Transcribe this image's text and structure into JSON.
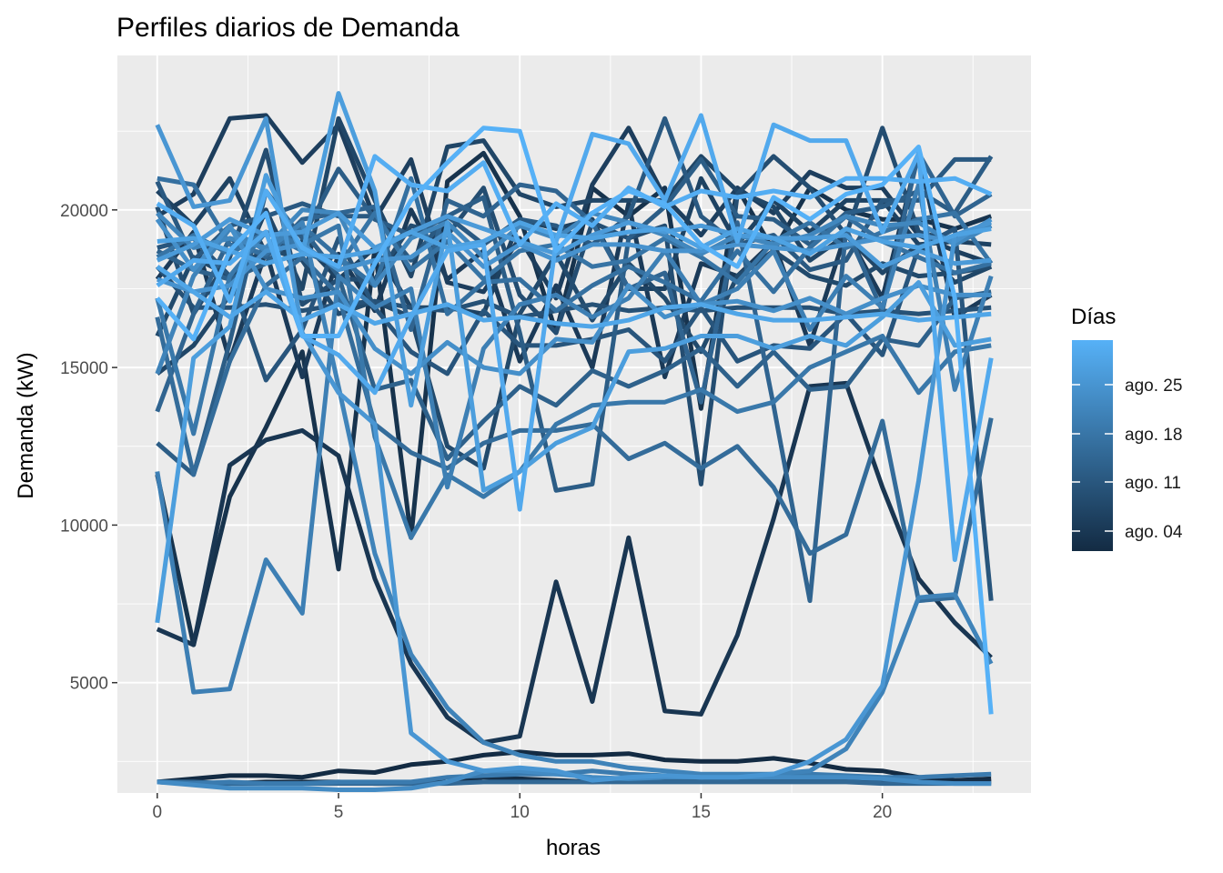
{
  "chart_data": {
    "type": "line",
    "title": "Perfiles diarios de Demanda",
    "xlabel": "horas",
    "ylabel": "Demanda (kW)",
    "xlim": [
      -1.1,
      24.1
    ],
    "ylim": [
      1500,
      24900
    ],
    "x_ticks": [
      0,
      5,
      10,
      15,
      20
    ],
    "y_ticks": [
      5000,
      10000,
      15000,
      20000
    ],
    "grid": true,
    "background": "#EBEBEB",
    "legend": {
      "title": "Días",
      "position": "right",
      "labels": [
        "ago. 25",
        "ago. 18",
        "ago. 11",
        "ago. 04"
      ],
      "color_low": "#132B43",
      "color_high": "#56B1F7"
    },
    "x": [
      0,
      1,
      2,
      3,
      4,
      5,
      6,
      7,
      8,
      9,
      10,
      11,
      12,
      13,
      14,
      15,
      16,
      17,
      18,
      19,
      20,
      21,
      22,
      23
    ],
    "series": [
      {
        "day": 1,
        "values": [
          1850,
          1950,
          2050,
          2050,
          2000,
          2200,
          2150,
          2400,
          2500,
          2700,
          2800,
          2700,
          2700,
          2750,
          2550,
          2500,
          2500,
          2600,
          2450,
          2250,
          2200,
          2000,
          1900,
          1950
        ]
      },
      {
        "day": 2,
        "values": [
          1850,
          1800,
          1800,
          1850,
          1850,
          1850,
          1800,
          1800,
          1850,
          2000,
          1950,
          1900,
          1850,
          1900,
          1950,
          1900,
          1900,
          1900,
          1950,
          1950,
          1850,
          1850,
          1850,
          1850
        ]
      },
      {
        "day": 3,
        "values": [
          11600,
          6200,
          10900,
          13100,
          15500,
          8600,
          18800,
          9600,
          20900,
          21800,
          19800,
          16100,
          20700,
          19800,
          20700,
          13700,
          20700,
          18700,
          20700,
          20000,
          19700,
          19700,
          19400,
          19800
        ]
      },
      {
        "day": 4,
        "values": [
          6700,
          6200,
          11900,
          12700,
          13000,
          12200,
          8300,
          5600,
          3900,
          3100,
          3300,
          8200,
          4400,
          9600,
          4100,
          4000,
          6500,
          10200,
          14400,
          14500,
          11200,
          8300,
          6900,
          5800
        ]
      },
      {
        "day": 5,
        "values": [
          17800,
          19300,
          15200,
          18700,
          14700,
          18600,
          16800,
          20000,
          17800,
          18700,
          15200,
          17600,
          15000,
          20200,
          14700,
          18300,
          17900,
          19000,
          15700,
          19300,
          17200,
          21800,
          16600,
          17300
        ]
      },
      {
        "day": 6,
        "values": [
          19800,
          20500,
          22900,
          23000,
          21500,
          22700,
          19700,
          21600,
          17700,
          17400,
          19100,
          17200,
          20800,
          22600,
          20400,
          19200,
          20700,
          19900,
          21200,
          20700,
          20700,
          19200,
          18700,
          18300
        ]
      },
      {
        "day": 7,
        "values": [
          20600,
          19500,
          21000,
          18600,
          19000,
          17800,
          18800,
          16900,
          16900,
          16700,
          19700,
          19400,
          19700,
          17500,
          17500,
          21000,
          18900,
          20300,
          19300,
          20300,
          20300,
          18900,
          19000,
          18900
        ]
      },
      {
        "day": 8,
        "values": [
          14800,
          15700,
          17300,
          20000,
          17500,
          22900,
          20300,
          17900,
          22000,
          22200,
          20500,
          20100,
          20300,
          20300,
          20300,
          21700,
          20600,
          20100,
          18400,
          19200,
          18000,
          18900,
          17700,
          18200
        ]
      },
      {
        "day": 9,
        "values": [
          16000,
          18500,
          17900,
          18800,
          18400,
          16700,
          17100,
          16600,
          12500,
          11800,
          16700,
          18600,
          16500,
          18300,
          17200,
          15500,
          17900,
          18700,
          17900,
          17600,
          18300,
          17900,
          18000,
          18200
        ]
      },
      {
        "day": 10,
        "values": [
          20100,
          16700,
          18500,
          21900,
          17000,
          17800,
          17800,
          19500,
          19200,
          20700,
          17300,
          16100,
          19600,
          19100,
          19500,
          11300,
          20500,
          21700,
          20700,
          19200,
          22600,
          19300,
          19000,
          19500
        ]
      },
      {
        "day": 11,
        "values": [
          18200,
          16900,
          16900,
          17000,
          16800,
          17000,
          17100,
          16900,
          16800,
          17100,
          16600,
          16800,
          17000,
          16800,
          16900,
          16800,
          16900,
          16900,
          16900,
          16700,
          16800,
          16700,
          16800,
          16900
        ]
      },
      {
        "day": 12,
        "values": [
          18800,
          19100,
          17900,
          14600,
          16200,
          19100,
          16900,
          15500,
          14800,
          16800,
          15700,
          15700,
          15900,
          16200,
          15200,
          16900,
          15200,
          15700,
          15600,
          16700,
          15400,
          18800,
          19400,
          7600
        ]
      },
      {
        "day": 13,
        "values": [
          20900,
          18400,
          19500,
          19800,
          20200,
          19800,
          19800,
          18400,
          19800,
          18900,
          19700,
          19500,
          18900,
          19800,
          22900,
          19800,
          18900,
          19200,
          18100,
          18400,
          20300,
          20300,
          21600,
          21600
        ]
      },
      {
        "day": 14,
        "values": [
          12600,
          11600,
          15800,
          20600,
          19100,
          21300,
          19700,
          19200,
          19800,
          20400,
          16100,
          11100,
          11300,
          19100,
          20100,
          21600,
          19800,
          19700,
          18900,
          19900,
          20100,
          20600,
          19900,
          21700
        ]
      },
      {
        "day": 15,
        "values": [
          18700,
          18100,
          17800,
          18300,
          19400,
          17900,
          14300,
          14600,
          12100,
          13300,
          14400,
          13800,
          14900,
          14400,
          14900,
          15600,
          14400,
          15500,
          14300,
          14400,
          15900,
          15700,
          17200,
          17400
        ]
      },
      {
        "day": 16,
        "values": [
          13600,
          16700,
          19100,
          18500,
          19700,
          19900,
          20100,
          16200,
          20300,
          19800,
          20800,
          20600,
          19600,
          17500,
          18000,
          13900,
          19600,
          13800,
          7600,
          19400,
          16800,
          21800,
          19800,
          20500
        ]
      },
      {
        "day": 17,
        "values": [
          1850,
          1850,
          1800,
          1800,
          1800,
          1800,
          1800,
          1800,
          1800,
          1850,
          1850,
          1850,
          1850,
          1850,
          1850,
          1850,
          1850,
          1850,
          1850,
          1850,
          1800,
          1800,
          1800,
          1800
        ]
      },
      {
        "day": 18,
        "values": [
          16600,
          11600,
          15200,
          17600,
          18500,
          17300,
          13200,
          12300,
          11800,
          12600,
          13000,
          13000,
          13200,
          12100,
          12600,
          11800,
          12500,
          11200,
          9100,
          9700,
          13300,
          7600,
          7700,
          13400
        ]
      },
      {
        "day": 19,
        "values": [
          21000,
          20800,
          18900,
          18600,
          19500,
          18500,
          17600,
          21000,
          16700,
          17700,
          17800,
          16800,
          17600,
          18200,
          17700,
          17100,
          18700,
          17400,
          18800,
          19800,
          19000,
          18500,
          18000,
          18300
        ]
      },
      {
        "day": 20,
        "values": [
          18500,
          19200,
          18600,
          19300,
          18700,
          18200,
          19900,
          18100,
          19000,
          17800,
          18700,
          18900,
          18200,
          18400,
          19100,
          18500,
          17700,
          19000,
          19600,
          18800,
          19300,
          19700,
          19900,
          18300
        ]
      },
      {
        "day": 21,
        "values": [
          17200,
          12900,
          17900,
          19300,
          18900,
          19500,
          12800,
          9600,
          11600,
          10900,
          11700,
          13200,
          13800,
          13900,
          13900,
          14300,
          13600,
          13900,
          15000,
          15500,
          16000,
          14200,
          15500,
          15700
        ]
      },
      {
        "day": 22,
        "values": [
          1850,
          1800,
          1850,
          1800,
          1800,
          1850,
          1850,
          1850,
          2000,
          2050,
          2100,
          2100,
          2200,
          2100,
          2050,
          2000,
          2050,
          2100,
          2100,
          2050,
          2000,
          2000,
          2050,
          2100
        ]
      },
      {
        "day": 23,
        "values": [
          11700,
          4700,
          4800,
          8900,
          7200,
          17900,
          16900,
          17500,
          11200,
          15600,
          17000,
          17300,
          16600,
          17200,
          18700,
          17000,
          17500,
          18700,
          16200,
          17900,
          16900,
          20800,
          14300,
          17900
        ]
      },
      {
        "day": 24,
        "values": [
          14800,
          17900,
          19400,
          18700,
          19600,
          14400,
          9100,
          5900,
          4200,
          3100,
          2700,
          2500,
          2500,
          2300,
          2200,
          2100,
          2100,
          2100,
          2200,
          2900,
          4700,
          7700,
          7800,
          5600
        ]
      },
      {
        "day": 25,
        "values": [
          19900,
          18800,
          19100,
          18800,
          20000,
          19900,
          17600,
          19100,
          19600,
          18500,
          19500,
          19100,
          19900,
          19600,
          19200,
          18600,
          19200,
          18900,
          19200,
          19800,
          19500,
          19600,
          18900,
          19500
        ]
      },
      {
        "day": 26,
        "values": [
          1850,
          1750,
          1650,
          1650,
          1650,
          1600,
          1600,
          1650,
          1850,
          2200,
          2200,
          2100,
          2000,
          1950,
          2000,
          2000,
          2000,
          2000,
          2000,
          2000,
          1950,
          1850,
          1800,
          1800
        ]
      },
      {
        "day": 27,
        "values": [
          19700,
          18100,
          19500,
          17500,
          17200,
          17400,
          15600,
          14800,
          15800,
          15000,
          14800,
          15900,
          15800,
          17600,
          16600,
          17000,
          17100,
          16800,
          17200,
          16700,
          17200,
          17600,
          17300,
          17300
        ]
      },
      {
        "day": 28,
        "values": [
          17800,
          17400,
          17600,
          18700,
          18900,
          18100,
          18400,
          18500,
          19300,
          18200,
          18900,
          18400,
          18900,
          18900,
          18700,
          18700,
          18900,
          18800,
          18700,
          18900,
          19100,
          19200,
          19000,
          19700
        ]
      },
      {
        "day": 29,
        "values": [
          22700,
          20100,
          20300,
          22900,
          16100,
          14200,
          13200,
          3400,
          2500,
          2200,
          2300,
          2200,
          1900,
          2000,
          2050,
          2000,
          2000,
          2100,
          2500,
          3200,
          4900,
          11400,
          19200,
          19600
        ]
      },
      {
        "day": 30,
        "values": [
          18400,
          18900,
          19700,
          19200,
          19300,
          19900,
          18800,
          19300,
          19800,
          19400,
          19000,
          18600,
          19200,
          19600,
          19300,
          19500,
          19200,
          19100,
          19100,
          19200,
          18200,
          18700,
          18300,
          18400
        ]
      },
      {
        "day": 31,
        "values": [
          6900,
          15300,
          16300,
          21100,
          18600,
          23700,
          20600,
          13800,
          19600,
          11100,
          11700,
          12600,
          13100,
          15500,
          15600,
          16000,
          16000,
          15600,
          16000,
          15700,
          16600,
          17700,
          15700,
          15900
        ]
      },
      {
        "day": 32,
        "values": [
          19000,
          19100,
          18700,
          18300,
          18600,
          18500,
          18700,
          19300,
          18800,
          19000,
          19600,
          19200,
          19100,
          19300,
          19400,
          18800,
          19400,
          19100,
          18600,
          19400,
          19000,
          18800,
          19200,
          19400
        ]
      },
      {
        "day": 33,
        "values": [
          18200,
          17400,
          16600,
          17400,
          16500,
          17000,
          16400,
          16700,
          17000,
          16500,
          16600,
          16400,
          16300,
          16500,
          16900,
          17000,
          16700,
          16500,
          16500,
          16600,
          16700,
          16500,
          16600,
          16700
        ]
      },
      {
        "day": 34,
        "values": [
          17600,
          18400,
          18300,
          19300,
          16000,
          15400,
          14200,
          16600,
          18700,
          18900,
          10500,
          19000,
          22400,
          22100,
          20300,
          23000,
          19000,
          22700,
          22200,
          22200,
          19300,
          21800,
          8900,
          15300
        ]
      },
      {
        "day": 35,
        "values": [
          20200,
          19500,
          17100,
          20600,
          18800,
          18200,
          21700,
          20800,
          20600,
          21500,
          18900,
          20200,
          19500,
          20700,
          20100,
          20600,
          20400,
          20600,
          20400,
          21000,
          21000,
          20900,
          21000,
          20500
        ]
      },
      {
        "day": 36,
        "values": [
          17200,
          15900,
          18700,
          19900,
          16000,
          16000,
          18300,
          20300,
          21500,
          22600,
          22500,
          18700,
          19900,
          20600,
          20200,
          18900,
          18200,
          20400,
          19700,
          20500,
          20800,
          22000,
          17200,
          4000
        ]
      }
    ]
  }
}
